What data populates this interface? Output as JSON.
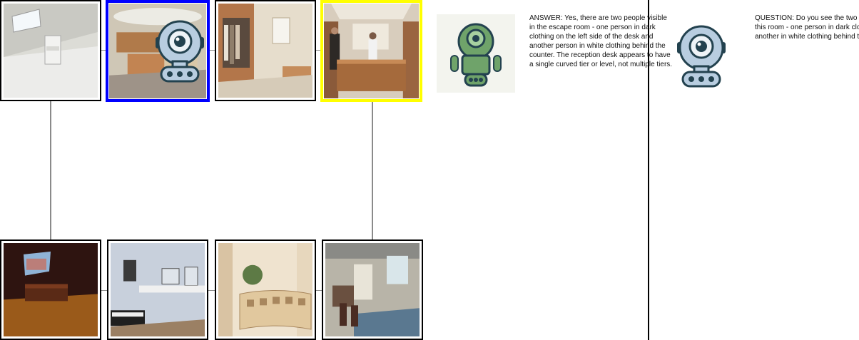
{
  "tiles": [
    {
      "name": "tile-attic-room",
      "scene": "attic bedroom with skylight window and white chair",
      "selected": "none"
    },
    {
      "name": "tile-reception-room",
      "scene": "reception area with curved ceiling and wood counter",
      "selected": "blue"
    },
    {
      "name": "tile-wardrobe-room",
      "scene": "walk-in wardrobe with hanging clothes and desk",
      "selected": "none"
    },
    {
      "name": "tile-escape-room",
      "scene": "reception desk with two people behind the counter",
      "selected": "yellow"
    },
    {
      "name": "tile-home-theater",
      "scene": "home theater with projection screen and seats",
      "selected": "none"
    },
    {
      "name": "tile-music-studio",
      "scene": "home studio with computer monitors and keyboard",
      "selected": "none"
    },
    {
      "name": "tile-curved-reception",
      "scene": "curved reception counter with plant",
      "selected": "none"
    },
    {
      "name": "tile-cluttered-studio",
      "scene": "cluttered art studio with chairs and rug",
      "selected": "none"
    }
  ],
  "answer_text": "ANSWER: Yes, there are two people visible in the escape room - one person in dark clothing on the left side of the desk and another person in white clothing behind the counter. The reception desk appears to have a single curved tier or level, not multiple tiers.",
  "question_text": "QUESTION: Do you see the two people in this room - one person in dark clothing and another in white clothing behind the counter?",
  "colors": {
    "selection_blue": "#0000ff",
    "selection_yellow": "#ffff00",
    "robot_green": "#6fa36a",
    "robot_blue": "#b8cde0",
    "robot_outline": "#23424f"
  },
  "icons": [
    "robot-agent-icon",
    "robot-icon"
  ]
}
